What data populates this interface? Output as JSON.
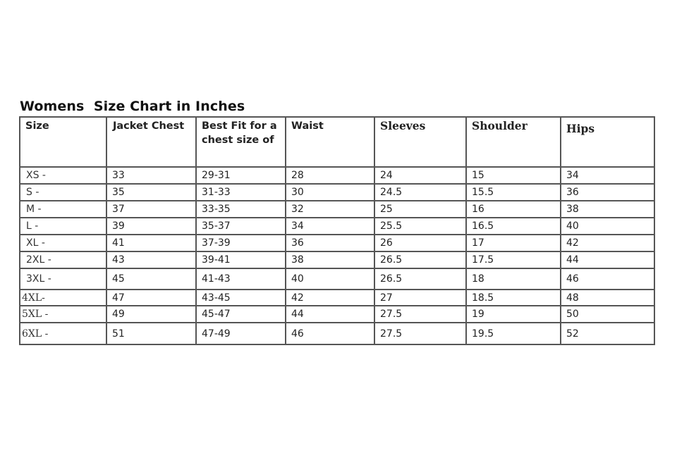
{
  "title": "Womens  Size Chart in Inches",
  "table": {
    "headers": [
      "Size",
      "Jacket Chest",
      "Best Fit for a chest size of",
      "Waist",
      "Sleeves",
      "Shoulder",
      "Hips"
    ],
    "rows": [
      [
        "XS -",
        "33",
        "29-31",
        "28",
        "24",
        "15",
        "34"
      ],
      [
        "S -",
        "35",
        "31-33",
        "30",
        "24.5",
        "15.5",
        "36"
      ],
      [
        "M -",
        "37",
        "33-35",
        "32",
        "25",
        "16",
        "38"
      ],
      [
        "L -",
        "39",
        "35-37",
        "34",
        "25.5",
        "16.5",
        "40"
      ],
      [
        "XL -",
        "41",
        "37-39",
        "36",
        "26",
        "17",
        "42"
      ],
      [
        "2XL -",
        "43",
        "39-41",
        "38",
        "26.5",
        "17.5",
        "44"
      ],
      [
        "3XL -",
        "45",
        "41-43",
        "40",
        "26.5",
        "18",
        "46"
      ],
      [
        "4XL-",
        "47",
        "43-45",
        "42",
        "27",
        "18.5",
        "48"
      ],
      [
        "5XL -",
        "49",
        "45-47",
        "44",
        "27.5",
        "19",
        "50"
      ],
      [
        "6XL -",
        "51",
        "47-49",
        "46",
        "27.5",
        "19.5",
        "52"
      ]
    ]
  }
}
